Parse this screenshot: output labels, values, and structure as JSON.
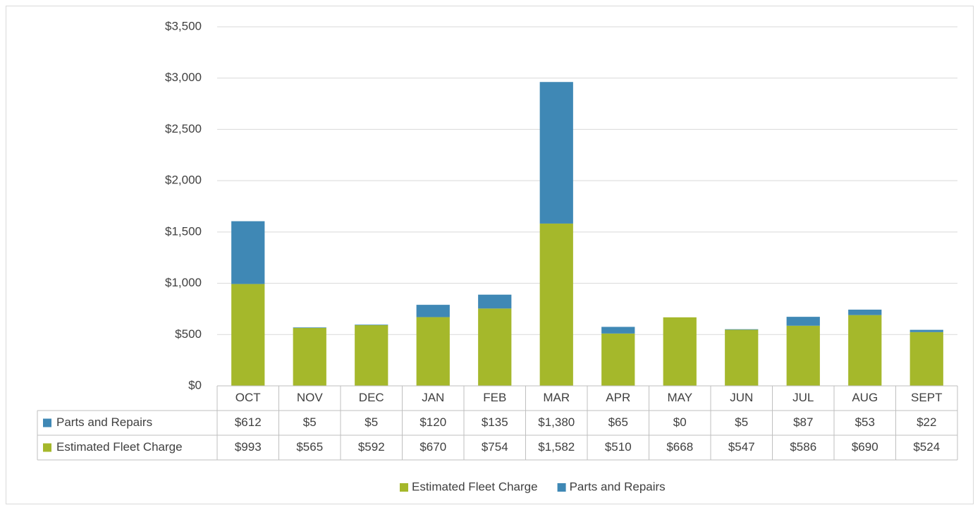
{
  "chart_data": {
    "type": "stacked_bar",
    "categories": [
      "OCT",
      "NOV",
      "DEC",
      "JAN",
      "FEB",
      "MAR",
      "APR",
      "MAY",
      "JUN",
      "JUL",
      "AUG",
      "SEPT"
    ],
    "series": [
      {
        "name": "Estimated Fleet Charge",
        "color": "#a5b82b",
        "values": [
          993,
          565,
          592,
          670,
          754,
          1582,
          510,
          668,
          547,
          586,
          690,
          524
        ],
        "value_labels": [
          "$993",
          "$565",
          "$592",
          "$670",
          "$754",
          "$1,582",
          "$510",
          "$668",
          "$547",
          "$586",
          "$690",
          "$524"
        ]
      },
      {
        "name": "Parts and Repairs",
        "color": "#3f88b5",
        "values": [
          612,
          5,
          5,
          120,
          135,
          1380,
          65,
          0,
          5,
          87,
          53,
          22
        ],
        "value_labels": [
          "$612",
          "$5",
          "$5",
          "$120",
          "$135",
          "$1,380",
          "$65",
          "$0",
          "$5",
          "$87",
          "$53",
          "$22"
        ]
      }
    ],
    "ylim": [
      0,
      3500
    ],
    "yticks": [
      {
        "value": 0,
        "label": "$0"
      },
      {
        "value": 500,
        "label": "$500"
      },
      {
        "value": 1000,
        "label": "$1,000"
      },
      {
        "value": 1500,
        "label": "$1,500"
      },
      {
        "value": 2000,
        "label": "$2,000"
      },
      {
        "value": 2500,
        "label": "$2,500"
      },
      {
        "value": 3000,
        "label": "$3,000"
      },
      {
        "value": 3500,
        "label": "$3,500"
      }
    ],
    "grid": true,
    "legend": "bottom"
  }
}
